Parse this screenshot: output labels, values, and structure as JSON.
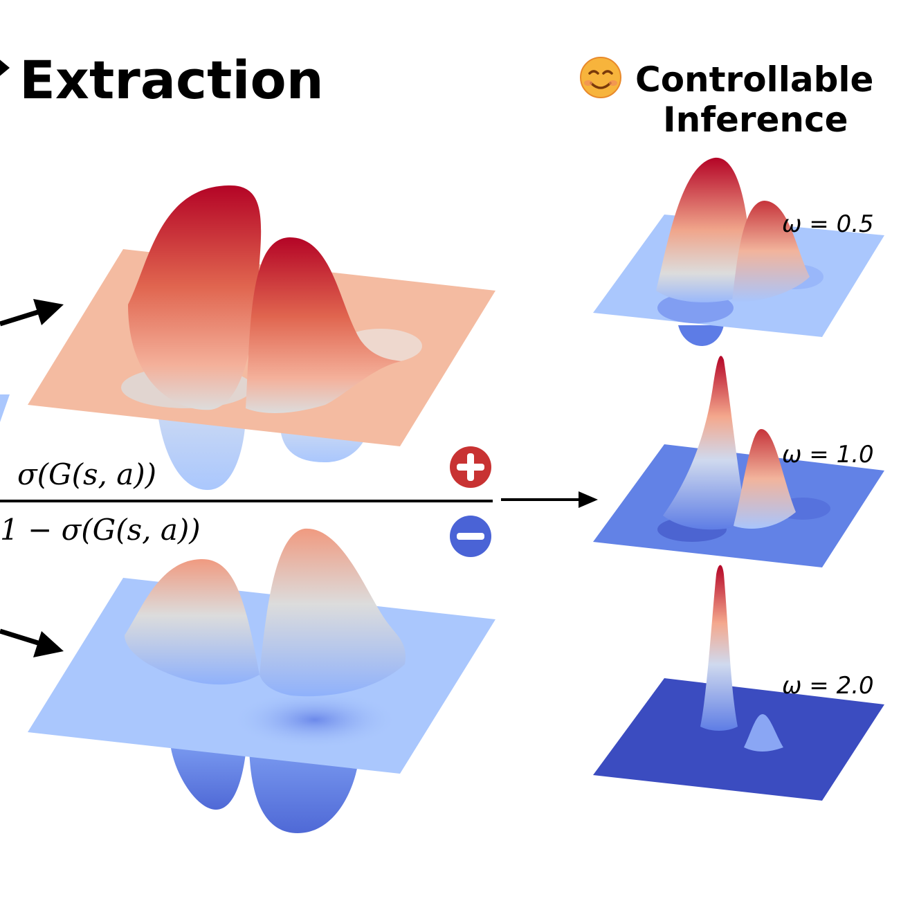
{
  "header": {
    "left_title": "Extraction",
    "right_title_line1": "Controllable",
    "right_title_line2": "Inference",
    "right_title_icon": "smiling-face-icon"
  },
  "formula": {
    "numerator": "σ(G(s, a))",
    "denominator": "1 − σ(G(s, a))"
  },
  "badges": {
    "plus": {
      "icon": "plus-icon",
      "color": "#c83232"
    },
    "minus": {
      "icon": "minus-icon",
      "color": "#4a63d6"
    }
  },
  "surfaces": {
    "positive_color_top": "#b40426",
    "positive_plane": "#f4bba1",
    "negative_plane": "#aac7fd",
    "low_color": "#3b4cc0"
  },
  "omega_labels": [
    "ω = 0.5",
    "ω = 1.0",
    "ω = 2.0"
  ]
}
